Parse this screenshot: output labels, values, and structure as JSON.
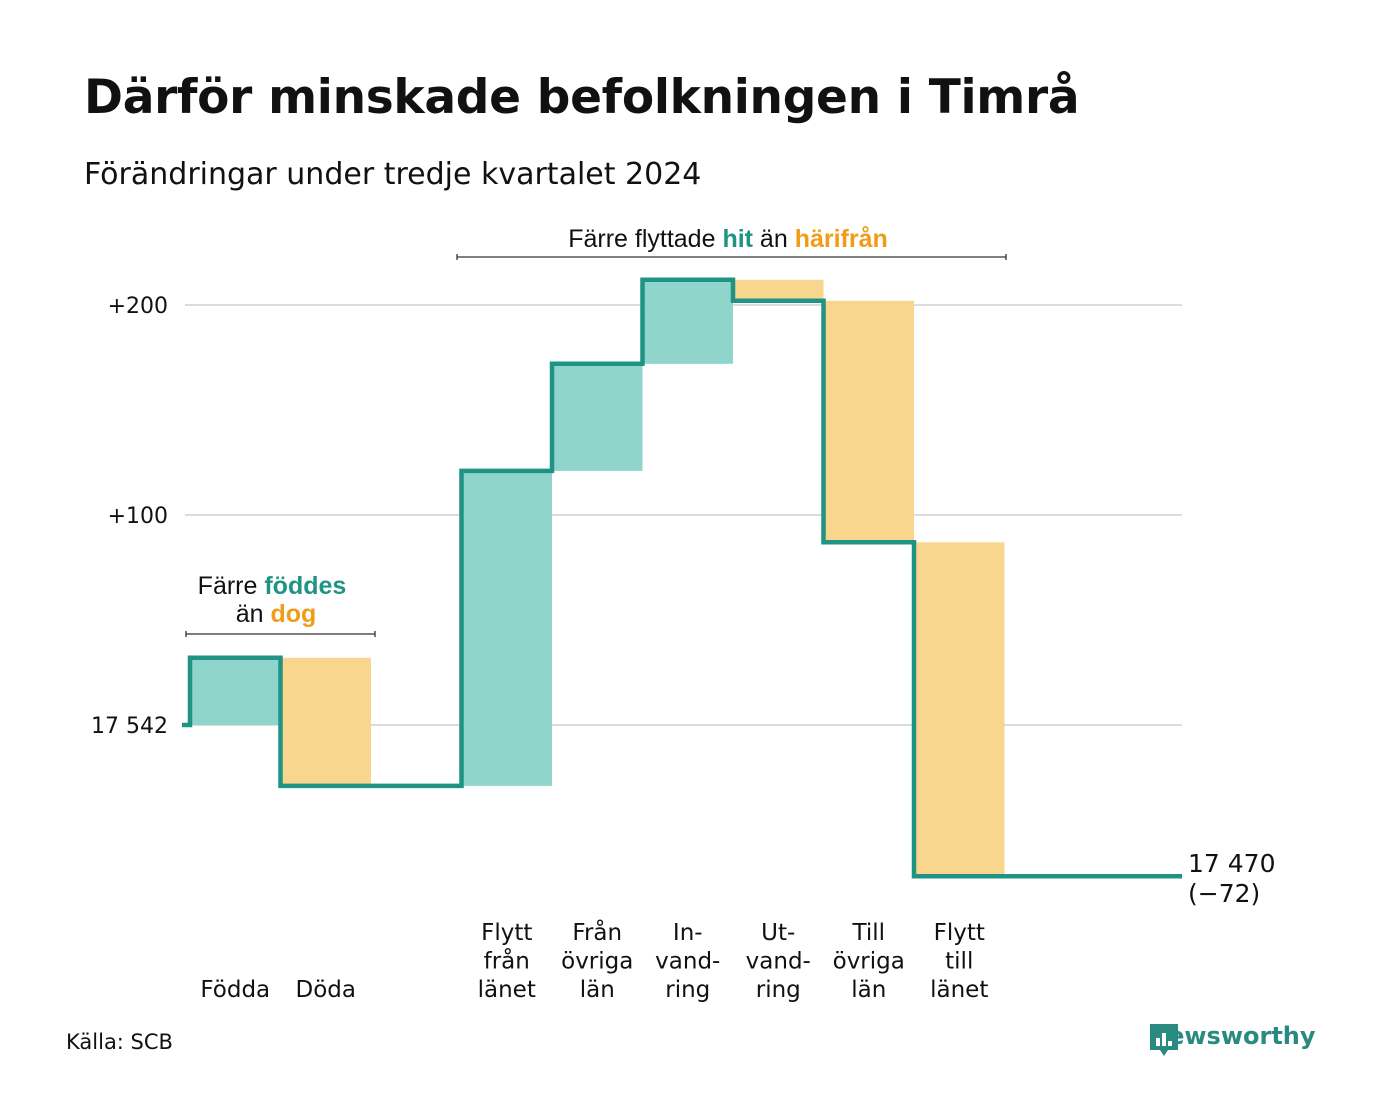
{
  "title": "Därför minskade befolkningen i Timrå",
  "subtitle": "Förändringar under tredje kvartalet 2024",
  "source": "Källa: SCB",
  "brand": "Newsworthy",
  "colors": {
    "increase": "#8fd5cc",
    "decrease": "#f9d68d",
    "line": "#1f9484",
    "accent_orange": "#f09c17",
    "grid": "#dcdcdc"
  },
  "chart_data": {
    "type": "waterfall",
    "start_value": 17542,
    "end_value": 17470,
    "net_change": -72,
    "end_label": [
      "17 470",
      "(−72)"
    ],
    "y_ticks": [
      {
        "value": 0,
        "label": "17 542"
      },
      {
        "value": 100,
        "label": "+100"
      },
      {
        "value": 200,
        "label": "+200"
      }
    ],
    "steps": [
      {
        "label": [
          "Födda"
        ],
        "change": 32,
        "kind": "increase"
      },
      {
        "label": [
          "Döda"
        ],
        "change": -61,
        "kind": "decrease"
      },
      {
        "label": [],
        "change": 0,
        "kind": "gap"
      },
      {
        "label": [
          "Flytt",
          "från",
          "länet"
        ],
        "change": 150,
        "kind": "increase"
      },
      {
        "label": [
          "Från",
          "övriga",
          "län"
        ],
        "change": 51,
        "kind": "increase"
      },
      {
        "label": [
          "In-",
          "vand-",
          "ring"
        ],
        "change": 40,
        "kind": "increase"
      },
      {
        "label": [
          "Ut-",
          "vand-",
          "ring"
        ],
        "change": -10,
        "kind": "decrease"
      },
      {
        "label": [
          "Till",
          "övriga",
          "län"
        ],
        "change": -115,
        "kind": "decrease"
      },
      {
        "label": [
          "Flytt",
          "till",
          "länet"
        ],
        "change": -159,
        "kind": "decrease"
      }
    ],
    "annotations": [
      {
        "parts": [
          [
            "Färre ",
            "normal"
          ],
          [
            "föddes",
            "inc"
          ]
        ],
        "parts2": [
          [
            "än ",
            "normal"
          ],
          [
            "dog",
            "dec"
          ]
        ]
      },
      {
        "parts": [
          [
            "Färre flyttade ",
            "normal"
          ],
          [
            "hit",
            "inc"
          ],
          [
            " än ",
            "normal"
          ],
          [
            "härifrån",
            "dec"
          ]
        ]
      }
    ]
  }
}
